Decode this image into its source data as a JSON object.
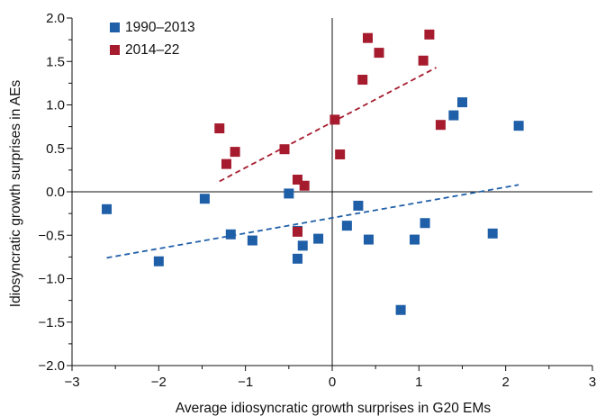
{
  "chart_data": {
    "type": "scatter",
    "xlabel": "Average idiosyncratic growth surprises in G20 EMs",
    "ylabel": "Idiosyncratic growth surprises in AEs",
    "xlim": [
      -3,
      3
    ],
    "ylim": [
      -2.0,
      2.0
    ],
    "x_ticks": [
      -3,
      -2,
      -1,
      0,
      1,
      2,
      3
    ],
    "x_tick_labels": [
      "−3",
      "−2",
      "−1",
      "0",
      "1",
      "2",
      "3"
    ],
    "y_ticks": [
      -2.0,
      -1.5,
      -1.0,
      -0.5,
      0.0,
      0.5,
      1.0,
      1.5,
      2.0
    ],
    "y_tick_labels": [
      "−2.0",
      "−1.5",
      "−1.0",
      "−0.5",
      "0.0",
      "0.5",
      "1.0",
      "1.5",
      "2.0"
    ],
    "grid": false,
    "legend_position": "top-left",
    "zero_lines": true,
    "series": [
      {
        "name": "1990–2013",
        "color": "#1f5fa8",
        "marker": "square",
        "trendline": {
          "style": "dashed",
          "x": [
            -2.6,
            2.15
          ],
          "y": [
            -0.76,
            0.08
          ]
        },
        "points": [
          {
            "x": -2.6,
            "y": -0.2
          },
          {
            "x": -2.0,
            "y": -0.8
          },
          {
            "x": -1.47,
            "y": -0.08
          },
          {
            "x": -1.17,
            "y": -0.49
          },
          {
            "x": -0.92,
            "y": -0.56
          },
          {
            "x": -0.5,
            "y": -0.02
          },
          {
            "x": -0.4,
            "y": -0.45
          },
          {
            "x": -0.4,
            "y": -0.77
          },
          {
            "x": -0.34,
            "y": -0.62
          },
          {
            "x": -0.16,
            "y": -0.54
          },
          {
            "x": 0.17,
            "y": -0.39
          },
          {
            "x": 0.3,
            "y": -0.16
          },
          {
            "x": 0.42,
            "y": -0.55
          },
          {
            "x": 0.79,
            "y": -1.36
          },
          {
            "x": 0.95,
            "y": -0.55
          },
          {
            "x": 1.07,
            "y": -0.36
          },
          {
            "x": 1.4,
            "y": 0.88
          },
          {
            "x": 1.5,
            "y": 1.03
          },
          {
            "x": 1.85,
            "y": -0.48
          },
          {
            "x": 2.15,
            "y": 0.76
          }
        ]
      },
      {
        "name": "2014–22",
        "color": "#a61c2e",
        "marker": "square",
        "trendline": {
          "style": "dashed",
          "x": [
            -1.3,
            1.2
          ],
          "y": [
            0.12,
            1.43
          ]
        },
        "points": [
          {
            "x": -1.3,
            "y": 0.73
          },
          {
            "x": -1.22,
            "y": 0.32
          },
          {
            "x": -1.12,
            "y": 0.46
          },
          {
            "x": -0.55,
            "y": 0.49
          },
          {
            "x": -0.4,
            "y": -0.46
          },
          {
            "x": -0.4,
            "y": 0.14
          },
          {
            "x": -0.32,
            "y": 0.07
          },
          {
            "x": 0.03,
            "y": 0.83
          },
          {
            "x": 0.09,
            "y": 0.43
          },
          {
            "x": 0.35,
            "y": 1.29
          },
          {
            "x": 0.41,
            "y": 1.77
          },
          {
            "x": 0.54,
            "y": 1.6
          },
          {
            "x": 1.05,
            "y": 1.51
          },
          {
            "x": 1.12,
            "y": 1.81
          },
          {
            "x": 1.25,
            "y": 0.77
          }
        ]
      }
    ]
  }
}
